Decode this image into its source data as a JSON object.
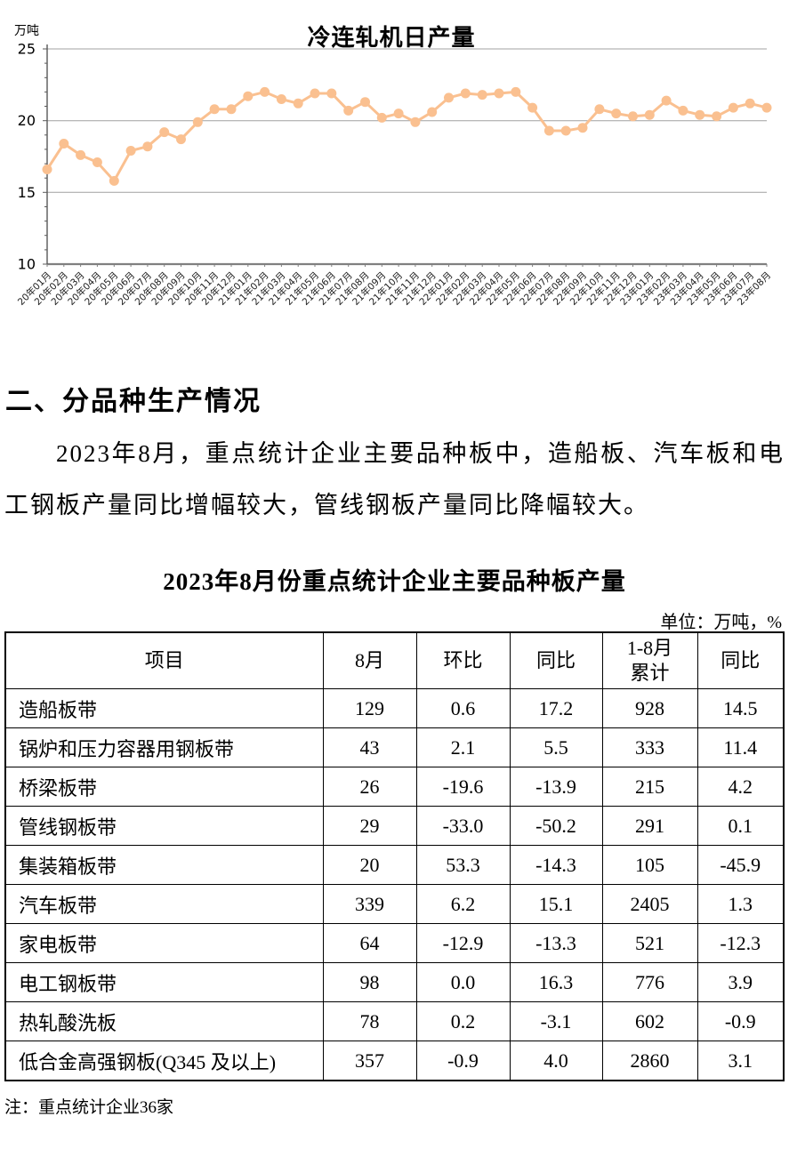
{
  "chart_data": {
    "type": "line",
    "title": "冷连轧机日产量",
    "ylabel": "万吨",
    "xlabel": "",
    "ylim": [
      10,
      25
    ],
    "yticks": [
      25,
      20,
      15,
      10
    ],
    "grid": true,
    "legend": false,
    "series_color": "#FAC090",
    "gridline_color": "#A0A0A0",
    "axis_color": "#808080",
    "x": [
      "20年01月",
      "20年02月",
      "20年03月",
      "20年04月",
      "20年05月",
      "20年06月",
      "20年07月",
      "20年08月",
      "20年09月",
      "20年10月",
      "20年11月",
      "20年12月",
      "21年01月",
      "21年02月",
      "21年03月",
      "21年04月",
      "21年05月",
      "21年06月",
      "21年07月",
      "21年08月",
      "21年09月",
      "21年10月",
      "21年11月",
      "21年12月",
      "22年01月",
      "22年02月",
      "22年03月",
      "22年04月",
      "22年05月",
      "22年06月",
      "22年07月",
      "22年08月",
      "22年09月",
      "22年10月",
      "22年11月",
      "22年12月",
      "23年01月",
      "23年02月",
      "23年03月",
      "23年04月",
      "23年05月",
      "23年06月",
      "23年07月",
      "23年08月"
    ],
    "values": [
      16.6,
      18.4,
      17.6,
      17.1,
      15.8,
      17.9,
      18.2,
      19.2,
      18.7,
      19.9,
      20.8,
      20.8,
      21.7,
      22.0,
      21.5,
      21.2,
      21.9,
      21.9,
      20.7,
      21.3,
      20.2,
      20.5,
      19.9,
      20.6,
      21.6,
      21.9,
      21.8,
      21.9,
      22.0,
      20.9,
      19.3,
      19.3,
      19.5,
      20.8,
      20.5,
      20.3,
      20.4,
      21.4,
      20.7,
      20.4,
      20.3,
      20.9,
      21.2,
      20.9
    ]
  },
  "section": {
    "heading": "二、分品种生产情况",
    "paragraph": "2023年8月，重点统计企业主要品种板中，造船板、汽车板和电工钢板产量同比增幅较大，管线钢板产量同比降幅较大。"
  },
  "table": {
    "title": "2023年8月份重点统计企业主要品种板产量",
    "unit_note": "单位：万吨，%",
    "headers": [
      "项目",
      "8月",
      "环比",
      "同比",
      "1-8月\n累计",
      "同比"
    ],
    "rows": [
      [
        "造船板带",
        "129",
        "0.6",
        "17.2",
        "928",
        "14.5"
      ],
      [
        "锅炉和压力容器用钢板带",
        "43",
        "2.1",
        "5.5",
        "333",
        "11.4"
      ],
      [
        "桥梁板带",
        "26",
        "-19.6",
        "-13.9",
        "215",
        "4.2"
      ],
      [
        "管线钢板带",
        "29",
        "-33.0",
        "-50.2",
        "291",
        "0.1"
      ],
      [
        "集装箱板带",
        "20",
        "53.3",
        "-14.3",
        "105",
        "-45.9"
      ],
      [
        "汽车板带",
        "339",
        "6.2",
        "15.1",
        "2405",
        "1.3"
      ],
      [
        "家电板带",
        "64",
        "-12.9",
        "-13.3",
        "521",
        "-12.3"
      ],
      [
        "电工钢板带",
        "98",
        "0.0",
        "16.3",
        "776",
        "3.9"
      ],
      [
        "热轧酸洗板",
        "78",
        "0.2",
        "-3.1",
        "602",
        "-0.9"
      ],
      [
        "低合金高强钢板(Q345 及以上)",
        "357",
        "-0.9",
        "4.0",
        "2860",
        "3.1"
      ]
    ]
  },
  "footnote": "注：重点统计企业36家"
}
